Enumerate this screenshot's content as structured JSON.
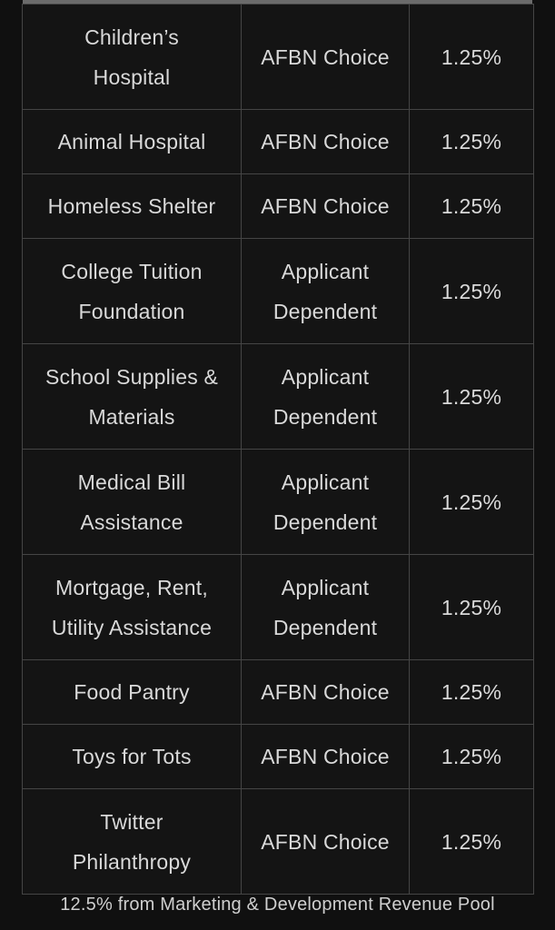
{
  "table": {
    "rows": [
      {
        "cause": [
          "Children’s",
          "Hospital"
        ],
        "selection": [
          "AFBN Choice"
        ],
        "percent": "1.25%"
      },
      {
        "cause": [
          "Animal Hospital"
        ],
        "selection": [
          "AFBN Choice"
        ],
        "percent": "1.25%"
      },
      {
        "cause": [
          "Homeless Shelter"
        ],
        "selection": [
          "AFBN Choice"
        ],
        "percent": "1.25%"
      },
      {
        "cause": [
          "College Tuition",
          "Foundation"
        ],
        "selection": [
          "Applicant",
          "Dependent"
        ],
        "percent": "1.25%"
      },
      {
        "cause": [
          "School Supplies &",
          "Materials"
        ],
        "selection": [
          "Applicant",
          "Dependent"
        ],
        "percent": "1.25%"
      },
      {
        "cause": [
          "Medical Bill",
          "Assistance"
        ],
        "selection": [
          "Applicant",
          "Dependent"
        ],
        "percent": "1.25%"
      },
      {
        "cause": [
          "Mortgage, Rent,",
          "Utility Assistance"
        ],
        "selection": [
          "Applicant",
          "Dependent"
        ],
        "percent": "1.25%"
      },
      {
        "cause": [
          "Food Pantry"
        ],
        "selection": [
          "AFBN Choice"
        ],
        "percent": "1.25%"
      },
      {
        "cause": [
          "Toys for Tots"
        ],
        "selection": [
          "AFBN Choice"
        ],
        "percent": "1.25%"
      },
      {
        "cause": [
          "Twitter",
          "Philanthropy"
        ],
        "selection": [
          "AFBN Choice"
        ],
        "percent": "1.25%"
      }
    ]
  },
  "footer": {
    "caption": "12.5% from Marketing & Development Revenue Pool"
  },
  "colors": {
    "background": "#101010",
    "border": "#454545",
    "text": "#d9d9d9"
  }
}
